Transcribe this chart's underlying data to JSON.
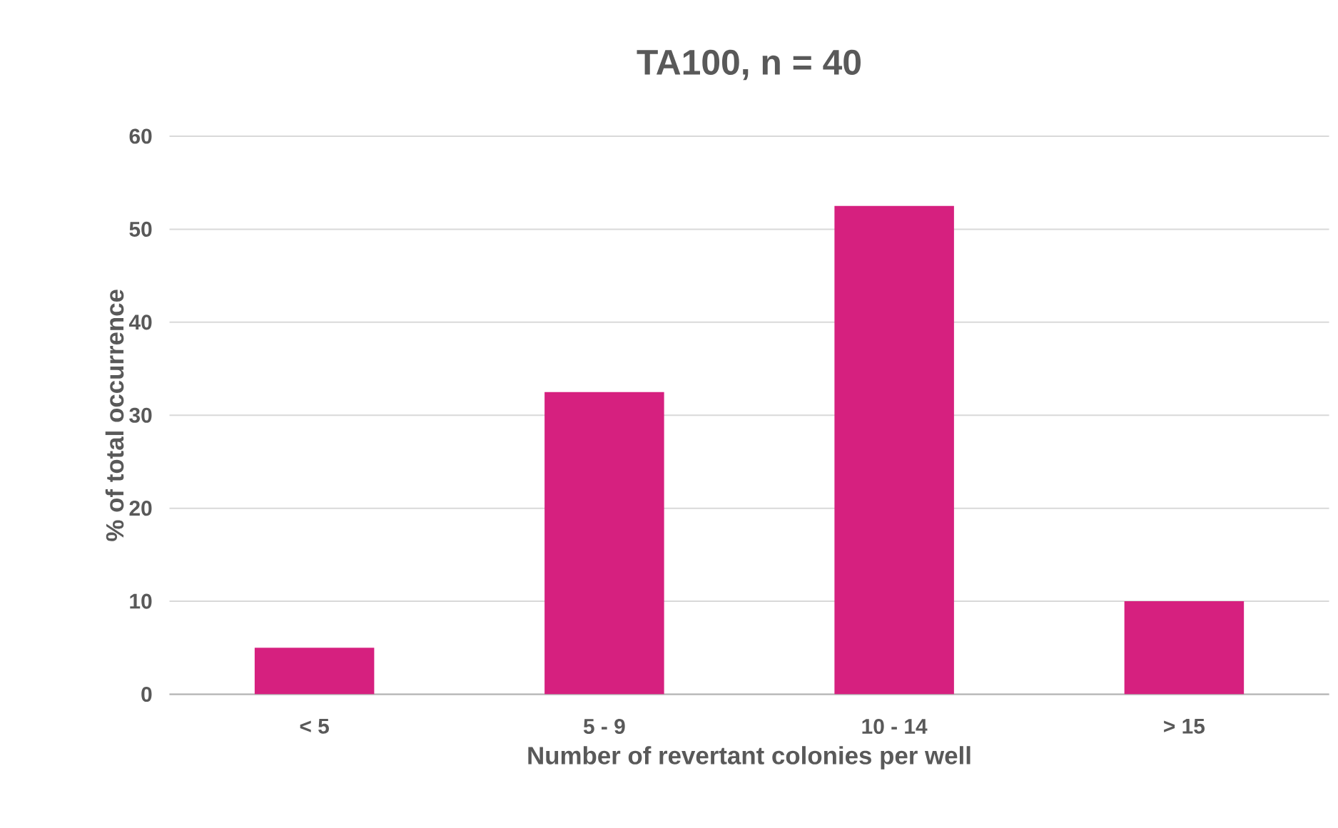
{
  "chart_data": {
    "type": "bar",
    "title": "TA100, n = 40",
    "xlabel": "Number of revertant colonies per well",
    "ylabel": "% of total occurrence",
    "categories": [
      "< 5",
      "5 - 9",
      "10 - 14",
      "> 15"
    ],
    "values": [
      5,
      32.5,
      52.5,
      10
    ],
    "color": "#d6207f",
    "ylim": [
      0,
      60
    ],
    "yticks": [
      0,
      10,
      20,
      30,
      40,
      50,
      60
    ],
    "grid": "y"
  }
}
